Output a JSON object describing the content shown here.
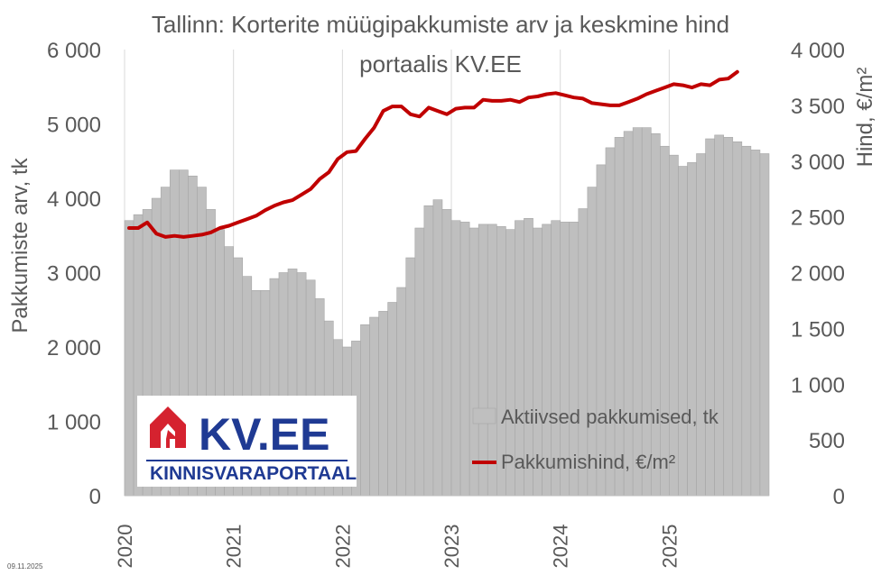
{
  "chart_data": {
    "type": "bar+line",
    "title_line1": "Tallinn: Korterite müügipakkumiste arv ja keskmine hind",
    "title_line2": "portaalis KV.EE",
    "ylabel_left": "Pakkumiste arv, tk",
    "ylabel_right": "Hind, €/m²",
    "ylim_left": [
      0,
      6000
    ],
    "ylim_right": [
      0,
      4000
    ],
    "y_ticks_left": [
      "0",
      "1 000",
      "2 000",
      "3 000",
      "4 000",
      "5 000",
      "6 000"
    ],
    "y_ticks_right": [
      "0",
      "500",
      "1 000",
      "1 500",
      "2 000",
      "2 500",
      "3 000",
      "3 500",
      "4 000"
    ],
    "x_tick_labels": [
      "2020",
      "2021",
      "2022",
      "2023",
      "2024",
      "2025"
    ],
    "grid": "vertical lines at year starts",
    "legend_position": "bottom-right inside plot",
    "series": [
      {
        "name": "Aktiivsed pakkumised, tk",
        "type": "bar",
        "axis": "left",
        "color": "#bfbfbf",
        "values": [
          3700,
          3780,
          3850,
          4000,
          4150,
          4380,
          4380,
          4300,
          4150,
          3850,
          3580,
          3350,
          3200,
          2950,
          2760,
          2760,
          2920,
          3000,
          3050,
          3000,
          2900,
          2650,
          2350,
          2100,
          2000,
          2080,
          2300,
          2400,
          2480,
          2600,
          2800,
          3200,
          3600,
          3900,
          3980,
          3850,
          3700,
          3680,
          3600,
          3650,
          3650,
          3620,
          3580,
          3700,
          3730,
          3600,
          3650,
          3700,
          3680,
          3680,
          3860,
          4150,
          4450,
          4680,
          4820,
          4900,
          4950,
          4950,
          4870,
          4700,
          4580,
          4430,
          4480,
          4600,
          4800,
          4850,
          4820,
          4760,
          4700,
          4650,
          4600
        ]
      },
      {
        "name": "Pakkumishind, €/m²",
        "type": "line",
        "axis": "right",
        "color": "#c00000",
        "values": [
          2400,
          2400,
          2450,
          2350,
          2320,
          2330,
          2320,
          2330,
          2340,
          2360,
          2400,
          2420,
          2450,
          2480,
          2510,
          2560,
          2600,
          2630,
          2650,
          2700,
          2750,
          2840,
          2900,
          3020,
          3080,
          3090,
          3200,
          3300,
          3450,
          3490,
          3490,
          3420,
          3400,
          3480,
          3450,
          3420,
          3470,
          3480,
          3480,
          3550,
          3540,
          3540,
          3550,
          3530,
          3570,
          3580,
          3600,
          3610,
          3590,
          3570,
          3560,
          3520,
          3510,
          3500,
          3500,
          3530,
          3560,
          3600,
          3630,
          3660,
          3690,
          3680,
          3660,
          3690,
          3680,
          3730,
          3740,
          3800
        ]
      }
    ]
  },
  "logo": {
    "brand_text": "KV.EE",
    "tagline": "KINNISVARAPORTAAL",
    "brand_color": "#d5222f",
    "text_color": "#1f3a93"
  },
  "date_stamp": "09.11.2025"
}
